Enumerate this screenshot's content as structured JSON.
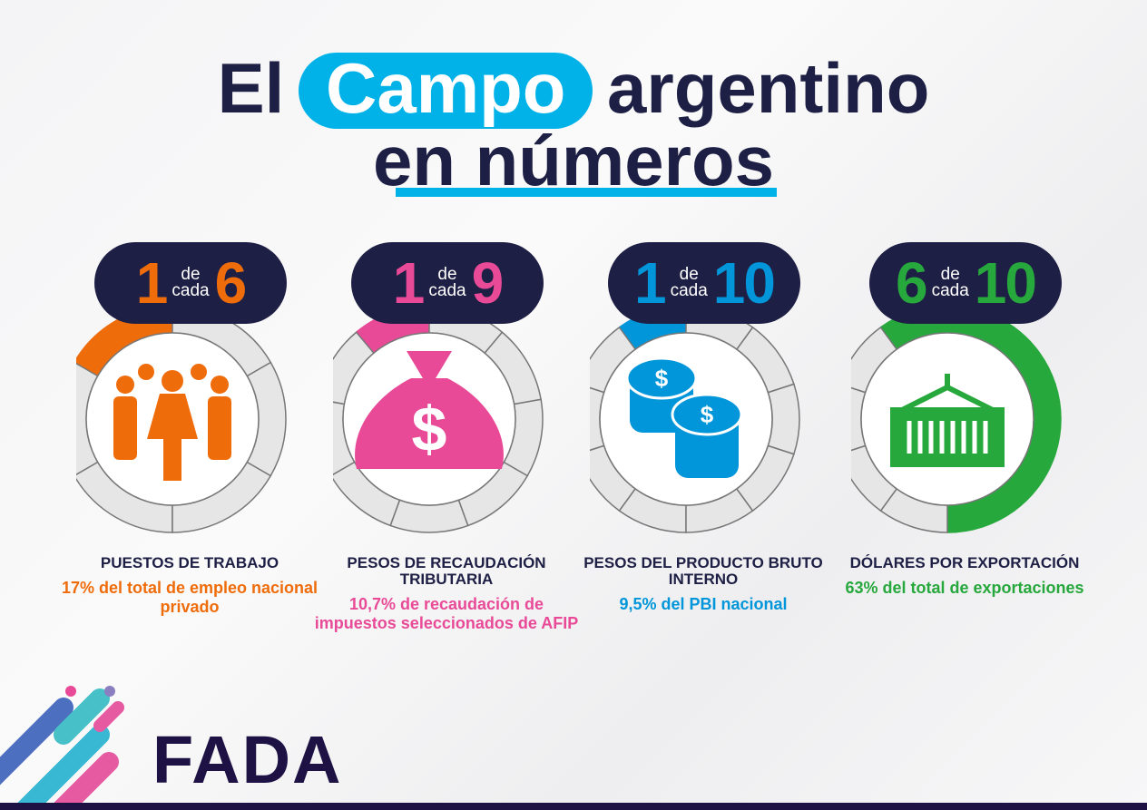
{
  "title": {
    "before": "El",
    "highlight": "Campo",
    "after": "argentino",
    "line2": "en números"
  },
  "colors": {
    "navy": "#1e1f45",
    "highlight": "#00b2e8",
    "ring_empty": "#e6e6e6"
  },
  "cards": [
    {
      "num": "1",
      "de": "de",
      "cada": "cada",
      "total": "6",
      "filled": 1,
      "segments": 6,
      "dir": -1,
      "start": 0,
      "color": "#ef6c0b",
      "icon": "people-icon",
      "heading": "PUESTOS DE TRABAJO",
      "detail": "17% del total de empleo nacional privado"
    },
    {
      "num": "1",
      "de": "de",
      "cada": "cada",
      "total": "9",
      "filled": 1,
      "segments": 9,
      "dir": -1,
      "start": 0,
      "color": "#e84a97",
      "icon": "money-bag-icon",
      "heading": "PESOS DE RECAUDACIÓN TRIBUTARIA",
      "detail": "10,7% de recaudación de impuestos seleccionados de AFIP"
    },
    {
      "num": "1",
      "de": "de",
      "cada": "cada",
      "total": "10",
      "filled": 1,
      "segments": 10,
      "dir": -1,
      "start": 0,
      "color": "#0096d9",
      "icon": "coins-icon",
      "heading": "PESOS DEL PRODUCTO BRUTO INTERNO",
      "detail": "9,5% del PBI nacional"
    },
    {
      "num": "6",
      "de": "de",
      "cada": "cada",
      "total": "10",
      "filled": 6,
      "segments": 10,
      "dir": 1,
      "start": -36,
      "color": "#27a83d",
      "icon": "container-icon",
      "heading": "DÓLARES POR EXPORTACIÓN",
      "detail": "63% del total de exportaciones"
    }
  ],
  "logo": "FADA"
}
